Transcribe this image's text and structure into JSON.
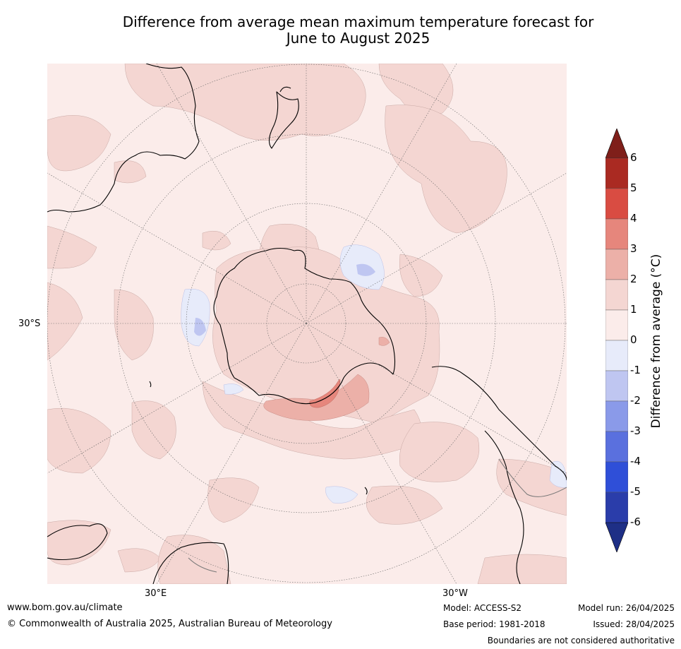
{
  "title_line1": "Difference from average mean maximum temperature forecast for",
  "title_line2": "June to August 2025",
  "map": {
    "lat_label": "30°S",
    "lon_label_left": "30°E",
    "lon_label_right": "30°W"
  },
  "colorbar": {
    "title": "Difference from average (°C)",
    "ticks": [
      "6",
      "5",
      "4",
      "3",
      "2",
      "1",
      "0",
      "-1",
      "-2",
      "-3",
      "-4",
      "-5",
      "-6"
    ],
    "colors": [
      "#7f1f1a",
      "#aa2a22",
      "#d94c42",
      "#e6867c",
      "#ecb0a8",
      "#f4d6d2",
      "#fbecea",
      "#e7ebfa",
      "#bfc6f1",
      "#8a9ae9",
      "#5a70de",
      "#2f4fd8",
      "#2a3daa",
      "#1e2f86"
    ]
  },
  "footer": {
    "website": "www.bom.gov.au/climate",
    "copyright": "© Commonwealth of Australia 2025, Australian Bureau of Meteorology",
    "model": "Model: ACCESS-S2",
    "base_period": "Base period: 1981-2018",
    "model_run": "Model run: 26/04/2025",
    "issued": "Issued: 28/04/2025",
    "disclaimer": "Boundaries are not considered authoritative"
  }
}
